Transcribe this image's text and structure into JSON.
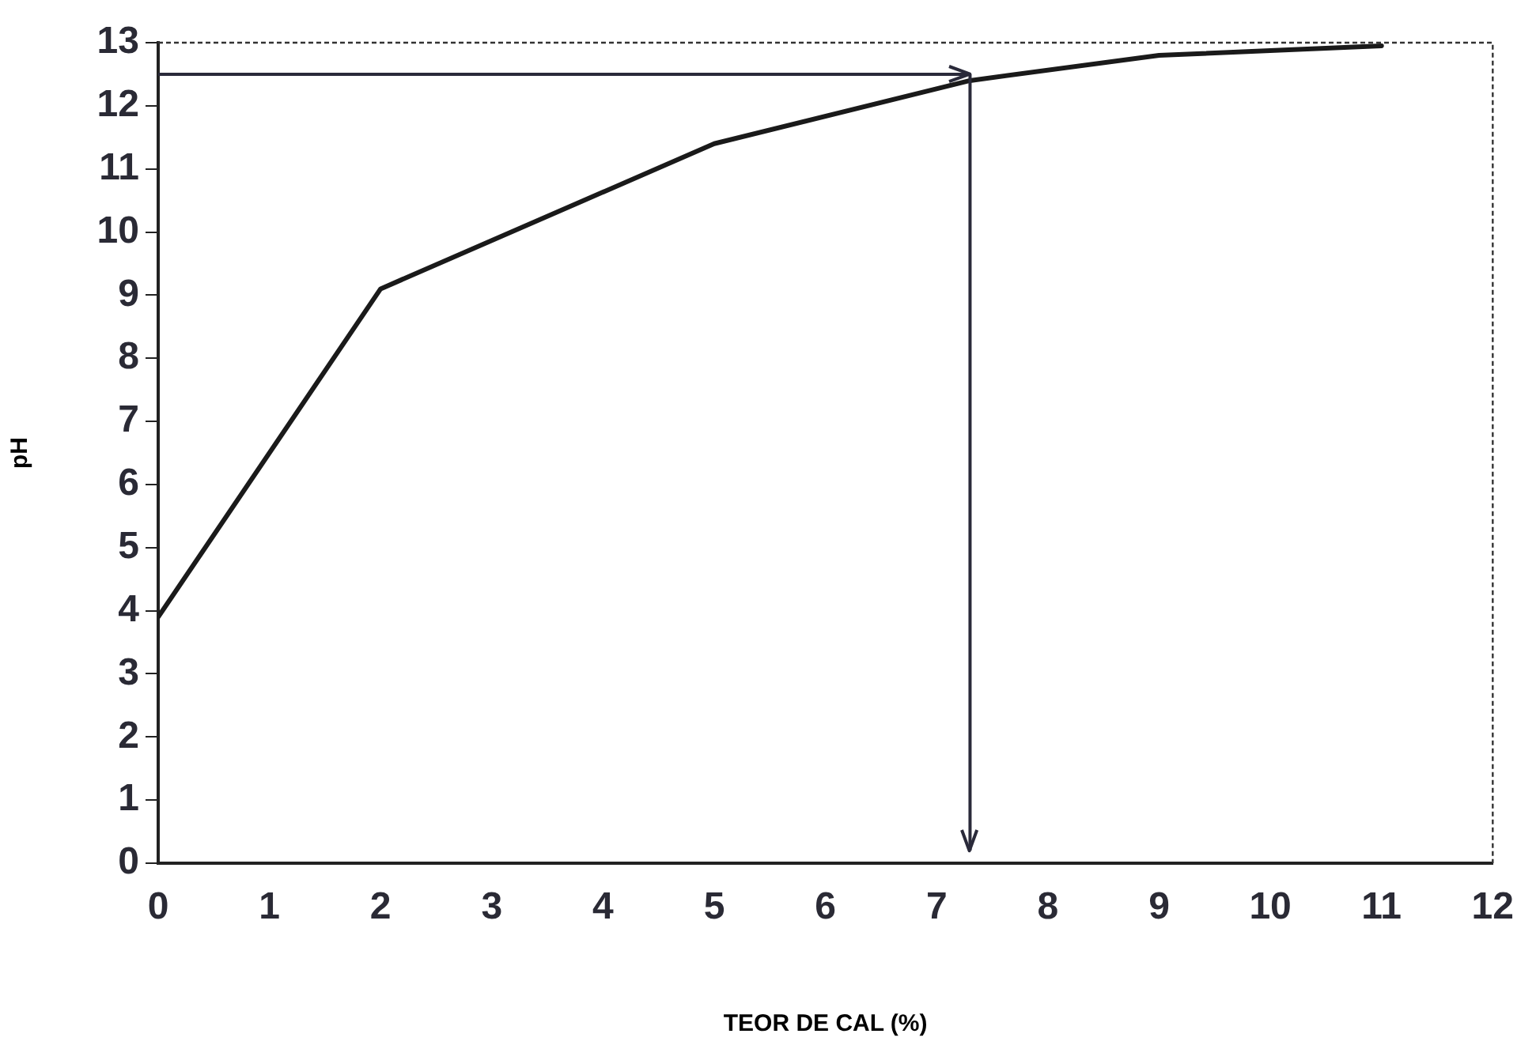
{
  "chart_data": {
    "type": "line",
    "xlabel": "TEOR DE CAL (%)",
    "ylabel": "pH",
    "x": [
      0,
      2,
      5,
      7.3,
      9,
      11
    ],
    "series": [
      {
        "color": "#1a1a1a",
        "values": [
          3.9,
          9.1,
          11.4,
          12.4,
          12.8,
          12.95
        ]
      }
    ],
    "xlim": [
      0,
      12
    ],
    "xticks": [
      0,
      1,
      2,
      3,
      4,
      5,
      6,
      7,
      8,
      9,
      10,
      11,
      12
    ],
    "ylim": [
      0,
      13
    ],
    "yticks": [
      0,
      1,
      2,
      3,
      4,
      5,
      6,
      7,
      8,
      9,
      10,
      11,
      12,
      13
    ],
    "ref_lines": [
      {
        "axis": "y",
        "value": 12.5,
        "color": "#2a2a3a"
      },
      {
        "axis": "x",
        "value": 7.3,
        "color": "#2a2a3a"
      }
    ],
    "grid": false,
    "legend": false,
    "marker": "none",
    "line_style": "solid"
  }
}
